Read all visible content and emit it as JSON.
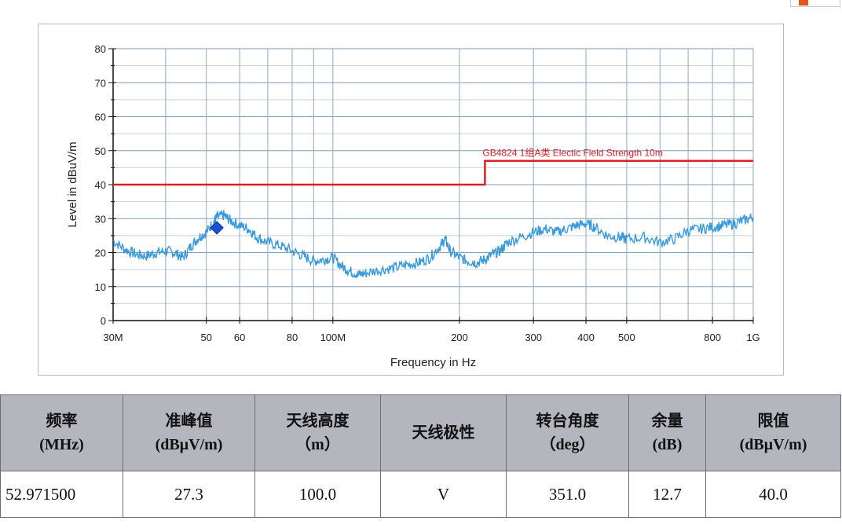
{
  "chart_data": {
    "type": "line",
    "xlabel": "Frequency in Hz",
    "ylabel": "Level in dBuV/m",
    "x_scale": "log",
    "xlim": [
      30000000,
      1000000000
    ],
    "ylim": [
      0,
      80
    ],
    "y_ticks": [
      0,
      10,
      20,
      30,
      40,
      50,
      60,
      70,
      80
    ],
    "x_ticks": [
      {
        "value": 30000000,
        "label": "30M"
      },
      {
        "value": 50000000,
        "label": "50"
      },
      {
        "value": 60000000,
        "label": "60"
      },
      {
        "value": 80000000,
        "label": "80"
      },
      {
        "value": 100000000,
        "label": "100M"
      },
      {
        "value": 200000000,
        "label": "200"
      },
      {
        "value": 300000000,
        "label": "300"
      },
      {
        "value": 400000000,
        "label": "400"
      },
      {
        "value": 500000000,
        "label": "500"
      },
      {
        "value": 800000000,
        "label": "800"
      },
      {
        "value": 1000000000,
        "label": "1G"
      }
    ],
    "grid": true,
    "series": [
      {
        "name": "",
        "color": "#3a9ad9",
        "x": [
          30000000,
          32000000,
          34000000,
          36000000,
          38000000,
          40000000,
          42000000,
          44000000,
          46000000,
          48000000,
          50000000,
          52000000,
          53000000,
          55000000,
          57000000,
          60000000,
          63000000,
          66000000,
          70000000,
          75000000,
          80000000,
          85000000,
          90000000,
          95000000,
          100000000,
          105000000,
          110000000,
          115000000,
          120000000,
          130000000,
          140000000,
          150000000,
          160000000,
          170000000,
          180000000,
          185000000,
          190000000,
          200000000,
          210000000,
          220000000,
          230000000,
          240000000,
          250000000,
          260000000,
          280000000,
          300000000,
          320000000,
          340000000,
          360000000,
          380000000,
          400000000,
          420000000,
          450000000,
          480000000,
          500000000,
          550000000,
          600000000,
          650000000,
          700000000,
          750000000,
          800000000,
          850000000,
          900000000,
          950000000,
          1000000000
        ],
        "y": [
          23.5,
          21,
          19.5,
          19,
          20,
          20.5,
          20,
          18.5,
          22,
          24.5,
          26,
          29,
          30.5,
          31,
          29.5,
          28,
          27,
          24.5,
          23,
          22,
          20.5,
          19,
          17.5,
          18,
          18.5,
          16,
          14.5,
          13.5,
          14,
          15,
          15.5,
          16.5,
          17,
          18.5,
          22,
          24,
          20.5,
          18.5,
          17.5,
          17,
          18,
          19.5,
          20.5,
          23,
          24.5,
          26,
          27,
          26,
          27,
          28,
          28.5,
          27.5,
          25,
          24.5,
          24,
          24.5,
          23,
          24,
          26.5,
          27,
          27.5,
          28,
          28.5,
          29.5,
          30.5
        ]
      },
      {
        "name": "GB4824 1组A类 Electic Field Strength 10m",
        "color": "#d8202a",
        "x": [
          30000000,
          230000000,
          230000000,
          1000000000
        ],
        "y": [
          40,
          40,
          47,
          47
        ]
      }
    ],
    "markers": [
      {
        "x": 52971500,
        "y": 27.3,
        "color": "#1a4fd8",
        "shape": "diamond"
      }
    ]
  },
  "table": {
    "headers": [
      [
        "频率",
        "(MHz)"
      ],
      [
        "准峰值",
        "(dBμV/m)"
      ],
      [
        "天线高度",
        "（m）"
      ],
      [
        "天线极性"
      ],
      [
        "转台角度",
        "（deg）"
      ],
      [
        "余量",
        "(dB)"
      ],
      [
        "限值",
        "(dBμV/m)"
      ]
    ],
    "rows": [
      [
        "52.971500",
        "27.3",
        "100.0",
        "V",
        "351.0",
        "12.7",
        "40.0"
      ]
    ]
  }
}
